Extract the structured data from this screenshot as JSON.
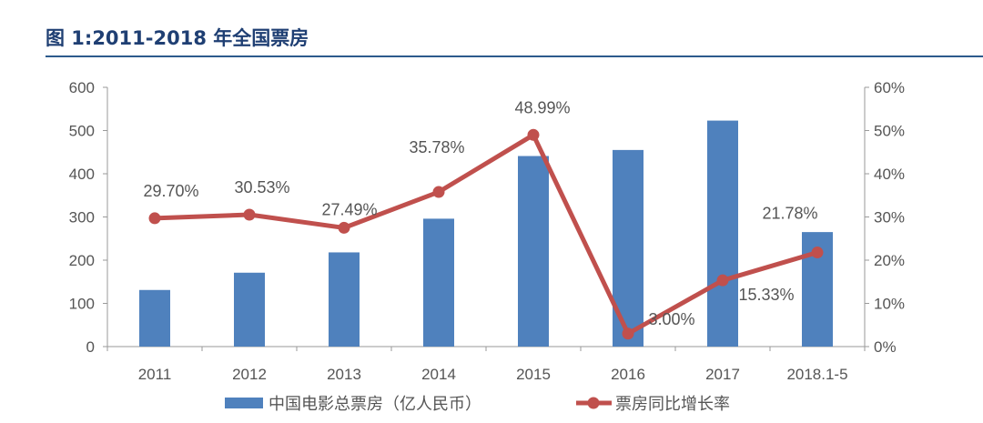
{
  "title": "图 1:2011-2018 年全国票房",
  "chart_data": {
    "type": "bar+line",
    "categories": [
      "2011",
      "2012",
      "2013",
      "2014",
      "2015",
      "2016",
      "2017",
      "2018.1-5"
    ],
    "series": [
      {
        "name": "中国电影总票房（亿人民币）",
        "type": "bar",
        "axis": "left",
        "color": "#4f81bd",
        "values": [
          131,
          171,
          218,
          296,
          441,
          455,
          523,
          265
        ]
      },
      {
        "name": "票房同比增长率",
        "type": "line",
        "axis": "right",
        "color": "#c0504d",
        "values": [
          29.7,
          30.53,
          27.49,
          35.78,
          48.99,
          3.0,
          15.33,
          21.78
        ],
        "labels": [
          "29.70%",
          "30.53%",
          "27.49%",
          "35.78%",
          "48.99%",
          "3.00%",
          "15.33%",
          "21.78%"
        ]
      }
    ],
    "y_left": {
      "range": [
        0,
        600
      ],
      "ticks": [
        "0",
        "100",
        "200",
        "300",
        "400",
        "500",
        "600"
      ]
    },
    "y_right": {
      "range": [
        0,
        60
      ],
      "ticks": [
        "0%",
        "10%",
        "20%",
        "30%",
        "40%",
        "50%",
        "60%"
      ]
    },
    "grid": false,
    "legend": "bottom"
  }
}
